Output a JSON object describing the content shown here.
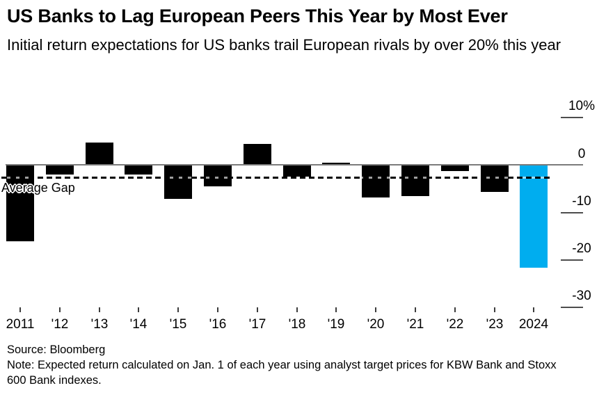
{
  "header": {
    "title": "US Banks to Lag European Peers This Year by Most Ever",
    "subtitle": "Initial return expectations for US banks trail European rivals by over 20% this year"
  },
  "chart_data": {
    "type": "bar",
    "title": "US Banks to Lag European Peers This Year by Most Ever",
    "subtitle": "Initial return expectations for US banks trail European rivals by over 20% this year",
    "xlabel": "",
    "ylabel": "",
    "categories": [
      "2011",
      "'12",
      "'13",
      "'14",
      "'15",
      "'16",
      "'17",
      "'18",
      "'19",
      "'20",
      "'21",
      "'22",
      "'23",
      "2024"
    ],
    "values": [
      -16,
      -1.9,
      4.5,
      -1.9,
      -7,
      -4.4,
      4.2,
      -2.4,
      0.3,
      -6.7,
      -6.5,
      -1.1,
      -5.6,
      -21.5
    ],
    "unit": "%",
    "ylim": [
      -30,
      10
    ],
    "yticks": [
      {
        "value": 10,
        "label": "10%"
      },
      {
        "value": 0,
        "label": "0"
      },
      {
        "value": -10,
        "label": "-10"
      },
      {
        "value": -20,
        "label": "-20"
      },
      {
        "value": -30,
        "label": "-30"
      }
    ],
    "bar_color": "#000000",
    "highlight_color": "#00adef",
    "highlight_category": "2024",
    "legend_position": "none",
    "grid": false,
    "annotations": [
      {
        "label": "Average Gap",
        "value": -2.7,
        "style": "dashed-line"
      }
    ]
  },
  "footer": {
    "source": "Source: Bloomberg",
    "note": "Note: Expected return calculated on Jan. 1 of each year using analyst target prices for KBW Bank and Stoxx 600 Bank indexes."
  }
}
